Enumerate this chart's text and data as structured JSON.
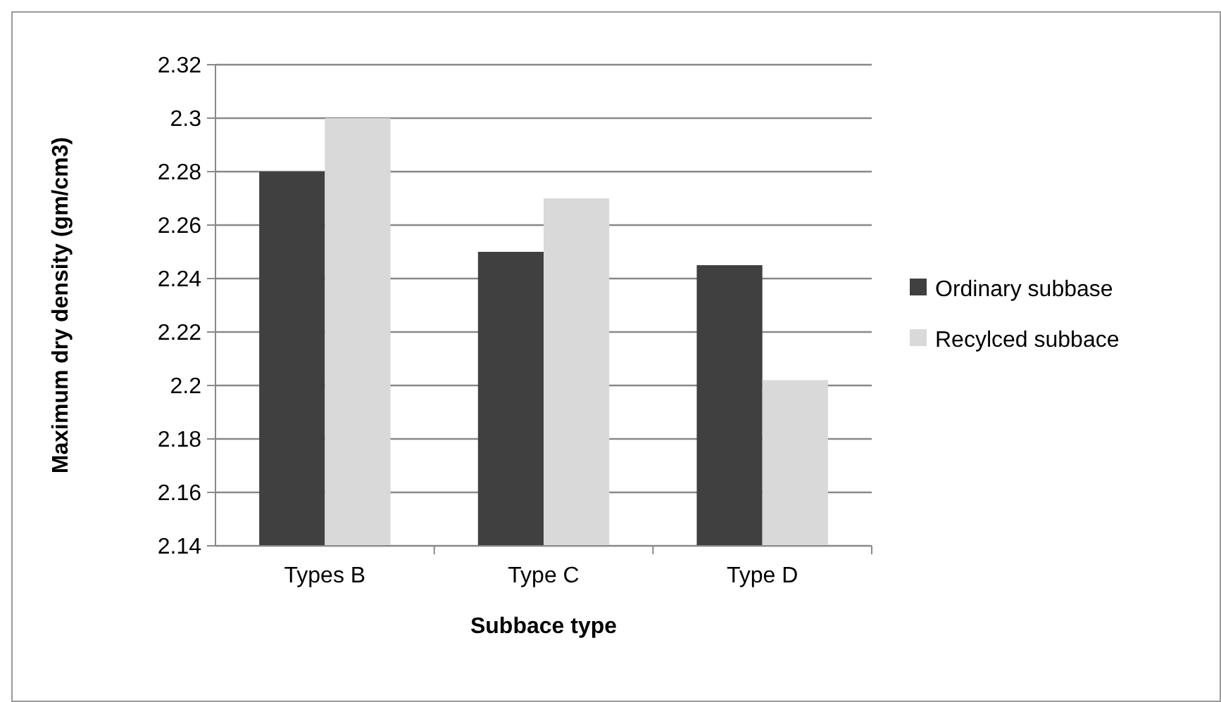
{
  "chart_data": {
    "type": "bar",
    "xlabel": "Subbace type",
    "ylabel": "Maximum dry density (gm/cm3)",
    "categories": [
      "Types B",
      "Type C",
      "Type D"
    ],
    "series": [
      {
        "name": "Ordinary subbase",
        "color": "#404040",
        "values": [
          2.28,
          2.25,
          2.245
        ]
      },
      {
        "name": "Recylced subbace",
        "color": "#d9d9d9",
        "values": [
          2.3,
          2.27,
          2.202
        ]
      }
    ],
    "ylim": [
      2.14,
      2.32
    ],
    "yticks": [
      2.14,
      2.16,
      2.18,
      2.2,
      2.22,
      2.24,
      2.26,
      2.28,
      2.3,
      2.32
    ],
    "grid": "y",
    "legend": "right"
  }
}
